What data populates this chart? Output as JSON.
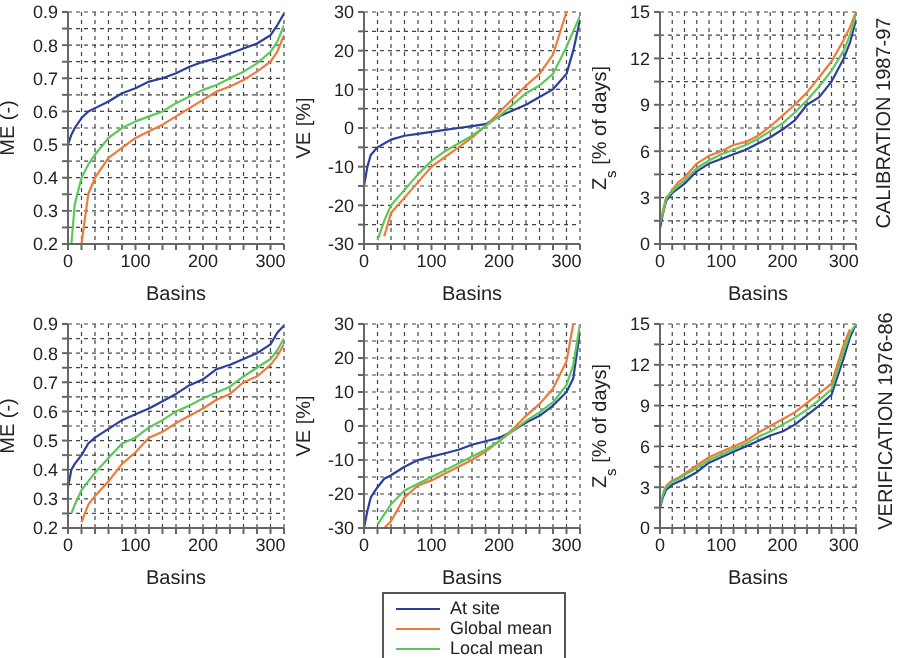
{
  "chart_data": [
    {
      "type": "line",
      "ylabel": "ME (-)",
      "xlabel": "Basins",
      "x": [
        0,
        5,
        10,
        20,
        30,
        40,
        60,
        80,
        100,
        120,
        140,
        160,
        180,
        200,
        220,
        240,
        260,
        280,
        300,
        310,
        320
      ],
      "xlim": [
        0,
        320
      ],
      "xticks": [
        0,
        {
          "value": 20,
          "label": null
        },
        {
          "value": 40,
          "label": null
        },
        {
          "value": 60,
          "label": null
        },
        {
          "value": 80,
          "label": null
        },
        100,
        {
          "value": 120,
          "label": null
        },
        {
          "value": 140,
          "label": null
        },
        {
          "value": 160,
          "label": null
        },
        {
          "value": 180,
          "label": null
        },
        200,
        {
          "value": 220,
          "label": null
        },
        {
          "value": 240,
          "label": null
        },
        {
          "value": 260,
          "label": null
        },
        {
          "value": 280,
          "label": null
        },
        300,
        {
          "value": 320,
          "label": null
        }
      ],
      "ylim": [
        0.2,
        0.9
      ],
      "yticks": [
        0.2,
        {
          "value": 0.25,
          "label": null
        },
        0.3,
        {
          "value": 0.35,
          "label": null
        },
        0.4,
        {
          "value": 0.45,
          "label": null
        },
        0.5,
        {
          "value": 0.55,
          "label": null
        },
        0.6,
        {
          "value": 0.65,
          "label": null
        },
        0.7,
        {
          "value": 0.75,
          "label": null
        },
        0.8,
        {
          "value": 0.85,
          "label": null
        },
        0.9
      ],
      "grid": true,
      "line_style": "solid",
      "marker": "none",
      "series": [
        {
          "color": "#2b3f9e",
          "values": [
            0.5,
            0.53,
            0.55,
            0.58,
            0.6,
            0.61,
            0.63,
            0.655,
            0.67,
            0.69,
            0.7,
            0.715,
            0.735,
            0.75,
            0.76,
            0.775,
            0.79,
            0.805,
            0.83,
            0.86,
            0.895
          ]
        },
        {
          "color": "#f07a3a",
          "values": [
            null,
            null,
            null,
            0.2,
            0.35,
            0.4,
            0.46,
            0.49,
            0.52,
            0.54,
            0.56,
            0.585,
            0.61,
            0.635,
            0.66,
            0.675,
            0.695,
            0.72,
            0.75,
            0.78,
            0.83
          ]
        },
        {
          "color": "#5cc85a",
          "values": [
            null,
            0.2,
            0.32,
            0.4,
            0.44,
            0.47,
            0.52,
            0.55,
            0.57,
            0.585,
            0.6,
            0.625,
            0.645,
            0.665,
            0.68,
            0.7,
            0.72,
            0.745,
            0.78,
            0.81,
            0.86
          ]
        }
      ]
    },
    {
      "type": "line",
      "ylabel": "VE [%]",
      "xlabel": "Basins",
      "x": [
        0,
        5,
        10,
        20,
        30,
        40,
        60,
        80,
        100,
        120,
        140,
        160,
        180,
        200,
        220,
        240,
        260,
        280,
        300,
        310,
        320
      ],
      "xlim": [
        0,
        320
      ],
      "xticks": [
        0,
        {
          "value": 20,
          "label": null
        },
        {
          "value": 40,
          "label": null
        },
        {
          "value": 60,
          "label": null
        },
        {
          "value": 80,
          "label": null
        },
        100,
        {
          "value": 120,
          "label": null
        },
        {
          "value": 140,
          "label": null
        },
        {
          "value": 160,
          "label": null
        },
        {
          "value": 180,
          "label": null
        },
        200,
        {
          "value": 220,
          "label": null
        },
        {
          "value": 240,
          "label": null
        },
        {
          "value": 260,
          "label": null
        },
        {
          "value": 280,
          "label": null
        },
        300,
        {
          "value": 320,
          "label": null
        }
      ],
      "ylim": [
        -30,
        30
      ],
      "yticks": [
        -30,
        {
          "value": -25,
          "label": null
        },
        -20,
        {
          "value": -15,
          "label": null
        },
        -10,
        {
          "value": -5,
          "label": null
        },
        0,
        {
          "value": 5,
          "label": null
        },
        10,
        {
          "value": 15,
          "label": null
        },
        20,
        {
          "value": 25,
          "label": null
        },
        30
      ],
      "grid": true,
      "line_style": "solid",
      "marker": "none",
      "series": [
        {
          "color": "#2b3f9e",
          "values": [
            -15,
            -10,
            -7,
            -5,
            -4,
            -3,
            -2,
            -1.5,
            -1,
            -0.5,
            0,
            0.5,
            1,
            3,
            4.5,
            6,
            8,
            10,
            14,
            20,
            28
          ]
        },
        {
          "color": "#f07a3a",
          "values": [
            null,
            null,
            null,
            null,
            -28,
            -22,
            -18,
            -14,
            -10,
            -7.5,
            -5,
            -2.5,
            0.5,
            4,
            7.5,
            11,
            14,
            19,
            30,
            null,
            null
          ]
        },
        {
          "color": "#5cc85a",
          "values": [
            null,
            null,
            null,
            -29,
            -24,
            -20,
            -16,
            -12,
            -8.5,
            -6,
            -4,
            -2,
            0.5,
            3,
            6,
            9,
            11,
            14,
            21,
            25,
            29
          ]
        }
      ]
    },
    {
      "type": "line",
      "ylabel": "Z$_{s}$ [% of days]",
      "xlabel": "Basins",
      "annotations": [
        "CALIBRATION 1987-97"
      ],
      "x": [
        0,
        5,
        10,
        20,
        30,
        40,
        60,
        80,
        100,
        120,
        140,
        160,
        180,
        200,
        220,
        240,
        260,
        280,
        300,
        310,
        320
      ],
      "xlim": [
        0,
        320
      ],
      "xticks": [
        0,
        {
          "value": 20,
          "label": null
        },
        {
          "value": 40,
          "label": null
        },
        {
          "value": 60,
          "label": null
        },
        {
          "value": 80,
          "label": null
        },
        100,
        {
          "value": 120,
          "label": null
        },
        {
          "value": 140,
          "label": null
        },
        {
          "value": 160,
          "label": null
        },
        {
          "value": 180,
          "label": null
        },
        200,
        {
          "value": 220,
          "label": null
        },
        {
          "value": 240,
          "label": null
        },
        {
          "value": 260,
          "label": null
        },
        {
          "value": 280,
          "label": null
        },
        300,
        {
          "value": 320,
          "label": null
        }
      ],
      "ylim": [
        0,
        15
      ],
      "yticks": [
        0,
        {
          "value": 1.5,
          "label": null
        },
        3,
        {
          "value": 4.5,
          "label": null
        },
        6,
        {
          "value": 7.5,
          "label": null
        },
        9,
        {
          "value": 10.5,
          "label": null
        },
        12,
        {
          "value": 13.5,
          "label": null
        },
        15
      ],
      "grid": true,
      "line_style": "solid",
      "marker": "none",
      "series": [
        {
          "color": "#2b3f9e",
          "values": [
            1,
            2,
            2.8,
            3.3,
            3.6,
            3.9,
            4.7,
            5.2,
            5.5,
            5.8,
            6.1,
            6.5,
            6.9,
            7.4,
            8,
            9,
            9.5,
            10.5,
            12,
            13,
            14.5
          ]
        },
        {
          "color": "#f07a3a",
          "values": [
            1.5,
            2,
            2.9,
            3.5,
            4,
            4.3,
            5.2,
            5.7,
            6,
            6.4,
            6.6,
            7,
            7.6,
            8.3,
            9,
            9.8,
            10.8,
            11.8,
            13.2,
            14,
            15
          ]
        },
        {
          "color": "#5cc85a",
          "values": [
            1.3,
            2.2,
            3,
            3.4,
            3.8,
            4.1,
            4.9,
            5.4,
            5.8,
            6.1,
            6.4,
            6.8,
            7.3,
            7.8,
            8.5,
            9.3,
            10.2,
            11.2,
            12.5,
            13.5,
            14.8
          ]
        }
      ]
    },
    {
      "type": "line",
      "ylabel": "ME (-)",
      "xlabel": "Basins",
      "x": [
        0,
        5,
        10,
        20,
        30,
        40,
        60,
        80,
        100,
        120,
        140,
        160,
        180,
        200,
        220,
        240,
        260,
        280,
        300,
        310,
        320
      ],
      "xlim": [
        0,
        320
      ],
      "xticks": [
        0,
        {
          "value": 20,
          "label": null
        },
        {
          "value": 40,
          "label": null
        },
        {
          "value": 60,
          "label": null
        },
        {
          "value": 80,
          "label": null
        },
        100,
        {
          "value": 120,
          "label": null
        },
        {
          "value": 140,
          "label": null
        },
        {
          "value": 160,
          "label": null
        },
        {
          "value": 180,
          "label": null
        },
        200,
        {
          "value": 220,
          "label": null
        },
        {
          "value": 240,
          "label": null
        },
        {
          "value": 260,
          "label": null
        },
        {
          "value": 280,
          "label": null
        },
        300,
        {
          "value": 320,
          "label": null
        }
      ],
      "ylim": [
        0.2,
        0.9
      ],
      "yticks": [
        0.2,
        {
          "value": 0.25,
          "label": null
        },
        0.3,
        {
          "value": 0.35,
          "label": null
        },
        0.4,
        {
          "value": 0.45,
          "label": null
        },
        0.5,
        {
          "value": 0.55,
          "label": null
        },
        0.6,
        {
          "value": 0.65,
          "label": null
        },
        0.7,
        {
          "value": 0.75,
          "label": null
        },
        0.8,
        {
          "value": 0.85,
          "label": null
        },
        0.9
      ],
      "grid": true,
      "line_style": "solid",
      "marker": "none",
      "series": [
        {
          "color": "#2b3f9e",
          "values": [
            0.34,
            0.4,
            0.42,
            0.45,
            0.49,
            0.51,
            0.54,
            0.57,
            0.59,
            0.61,
            0.635,
            0.66,
            0.69,
            0.71,
            0.745,
            0.76,
            0.78,
            0.8,
            0.83,
            0.87,
            0.895
          ]
        },
        {
          "color": "#f07a3a",
          "values": [
            null,
            null,
            null,
            0.22,
            0.28,
            0.31,
            0.36,
            0.42,
            0.46,
            0.51,
            0.53,
            0.56,
            0.585,
            0.61,
            0.64,
            0.66,
            0.7,
            0.72,
            0.76,
            0.79,
            0.83
          ]
        },
        {
          "color": "#5cc85a",
          "values": [
            null,
            0.25,
            0.28,
            0.33,
            0.36,
            0.39,
            0.44,
            0.49,
            0.51,
            0.545,
            0.57,
            0.6,
            0.62,
            0.645,
            0.665,
            0.685,
            0.72,
            0.75,
            0.78,
            0.81,
            0.85
          ]
        }
      ]
    },
    {
      "type": "line",
      "ylabel": "VE [%]",
      "xlabel": "Basins",
      "legend": "bottom",
      "x": [
        0,
        5,
        10,
        20,
        30,
        40,
        60,
        80,
        100,
        120,
        140,
        160,
        180,
        200,
        220,
        240,
        260,
        280,
        300,
        310,
        320
      ],
      "xlim": [
        0,
        320
      ],
      "xticks": [
        0,
        {
          "value": 20,
          "label": null
        },
        {
          "value": 40,
          "label": null
        },
        {
          "value": 60,
          "label": null
        },
        {
          "value": 80,
          "label": null
        },
        100,
        {
          "value": 120,
          "label": null
        },
        {
          "value": 140,
          "label": null
        },
        {
          "value": 160,
          "label": null
        },
        {
          "value": 180,
          "label": null
        },
        200,
        {
          "value": 220,
          "label": null
        },
        {
          "value": 240,
          "label": null
        },
        {
          "value": 260,
          "label": null
        },
        {
          "value": 280,
          "label": null
        },
        300,
        {
          "value": 320,
          "label": null
        }
      ],
      "ylim": [
        -30,
        30
      ],
      "yticks": [
        -30,
        {
          "value": -25,
          "label": null
        },
        -20,
        {
          "value": -15,
          "label": null
        },
        -10,
        {
          "value": -5,
          "label": null
        },
        0,
        {
          "value": 5,
          "label": null
        },
        10,
        {
          "value": 15,
          "label": null
        },
        20,
        {
          "value": 25,
          "label": null
        },
        30
      ],
      "grid": true,
      "line_style": "solid",
      "marker": "none",
      "series": [
        {
          "name": "At site",
          "color": "#2b3f9e",
          "values": [
            -30,
            -25,
            -21,
            -18,
            -15.5,
            -14.5,
            -12,
            -10,
            -9,
            -8,
            -7,
            -5.5,
            -4.5,
            -3.5,
            -1.5,
            1,
            3,
            6,
            10,
            14,
            28
          ]
        },
        {
          "name": "Global mean",
          "color": "#f07a3a",
          "values": [
            null,
            null,
            null,
            null,
            -30,
            -28,
            -21,
            -17.5,
            -16,
            -14,
            -12,
            -10,
            -7.5,
            -4.5,
            -1,
            3,
            6.5,
            11,
            19,
            30,
            null
          ]
        },
        {
          "name": "Local mean",
          "color": "#5cc85a",
          "values": [
            null,
            null,
            null,
            -29,
            -26,
            -23,
            -19,
            -17,
            -15,
            -13,
            -11,
            -9,
            -7,
            -4.5,
            -1.5,
            1.5,
            4,
            7,
            12,
            18,
            30
          ]
        }
      ]
    },
    {
      "type": "line",
      "ylabel": "Z$_{s}$ [% of days]",
      "xlabel": "Basins",
      "annotations": [
        "VERIFICATION 1976-86"
      ],
      "x": [
        0,
        5,
        10,
        20,
        30,
        40,
        60,
        80,
        100,
        120,
        140,
        160,
        180,
        200,
        220,
        240,
        260,
        280,
        300,
        310,
        320
      ],
      "xlim": [
        0,
        320
      ],
      "xticks": [
        0,
        {
          "value": 20,
          "label": null
        },
        {
          "value": 40,
          "label": null
        },
        {
          "value": 60,
          "label": null
        },
        {
          "value": 80,
          "label": null
        },
        100,
        {
          "value": 120,
          "label": null
        },
        {
          "value": 140,
          "label": null
        },
        {
          "value": 160,
          "label": null
        },
        {
          "value": 180,
          "label": null
        },
        200,
        {
          "value": 220,
          "label": null
        },
        {
          "value": 240,
          "label": null
        },
        {
          "value": 260,
          "label": null
        },
        {
          "value": 280,
          "label": null
        },
        300,
        {
          "value": 320,
          "label": null
        }
      ],
      "ylim": [
        0,
        15
      ],
      "yticks": [
        0,
        {
          "value": 1.5,
          "label": null
        },
        3,
        {
          "value": 4.5,
          "label": null
        },
        6,
        {
          "value": 7.5,
          "label": null
        },
        9,
        {
          "value": 10.5,
          "label": null
        },
        12,
        {
          "value": 13.5,
          "label": null
        },
        15
      ],
      "grid": true,
      "line_style": "solid",
      "marker": "none",
      "series": [
        {
          "color": "#2b3f9e",
          "values": [
            1.5,
            2.3,
            2.8,
            3.2,
            3.4,
            3.6,
            4.1,
            4.8,
            5.2,
            5.6,
            6,
            6.4,
            6.8,
            7.1,
            7.6,
            8.3,
            9,
            9.8,
            12.5,
            14,
            15
          ]
        },
        {
          "color": "#f07a3a",
          "values": [
            null,
            2.6,
            3.1,
            3.5,
            3.7,
            4,
            4.6,
            5.2,
            5.6,
            6,
            6.4,
            7,
            7.5,
            8,
            8.5,
            9.2,
            9.9,
            10.6,
            13.5,
            14.6,
            null
          ]
        },
        {
          "color": "#5cc85a",
          "values": [
            1.6,
            2.5,
            3,
            3.4,
            3.6,
            3.9,
            4.4,
            5,
            5.4,
            5.8,
            6.2,
            6.7,
            7.1,
            7.6,
            8.1,
            8.7,
            9.4,
            10.2,
            13,
            14.3,
            15
          ]
        }
      ]
    }
  ]
}
